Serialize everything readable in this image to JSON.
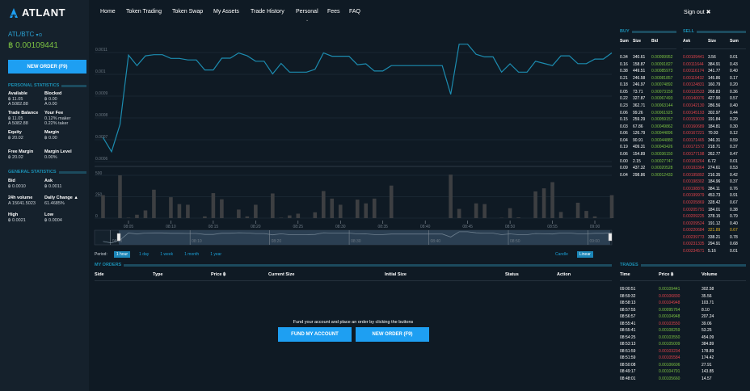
{
  "brand": "ATLANT",
  "colors": {
    "accent": "#1e9ff2",
    "line": "#1c8cb0",
    "buy": "#7cc242",
    "sell": "#e0434b",
    "highlight": "#e6b422"
  },
  "nav": {
    "items": [
      "Home",
      "Token Trading",
      "Token Swap",
      "My Assets",
      "Trade History",
      "Personal",
      "Fees",
      "FAQ"
    ],
    "sign_out": "Sign out"
  },
  "market": {
    "pair": "ATL/BTC",
    "pair_icons": "▾⊙",
    "price": "฿ 0.00109441",
    "new_order": "NEW ORDER (F9)"
  },
  "personal_stats": {
    "title": "PERSONAL STATISTICS",
    "items": [
      {
        "label": "Available",
        "lines": [
          "฿ 11.05",
          "A 5082.88"
        ]
      },
      {
        "label": "Blocked",
        "lines": [
          "฿ 0.00",
          "A 0.00"
        ]
      },
      {
        "label": "Trade Balance",
        "lines": [
          "฿ 11.05",
          "A 5082.88"
        ]
      },
      {
        "label": "Your Fee",
        "lines": [
          "0.12% maker",
          "0.22% taker"
        ]
      },
      {
        "label": "Equity",
        "lines": [
          "฿ 20.02"
        ]
      },
      {
        "label": "Margin",
        "lines": [
          "฿ 0.00"
        ]
      },
      {
        "label": "Free Margin",
        "lines": [
          "฿ 20.02"
        ]
      },
      {
        "label": "Margin Level",
        "lines": [
          "0.00%"
        ]
      }
    ]
  },
  "general_stats": {
    "title": "GENERAL STATISTICS",
    "items": [
      {
        "label": "Bid",
        "lines": [
          "฿ 0.0010"
        ]
      },
      {
        "label": "Ask",
        "lines": [
          "฿ 0.0011"
        ]
      },
      {
        "label": "24h volume",
        "lines": [
          "A 15041.5023"
        ]
      },
      {
        "label": "Daily Change ▲",
        "lines": [
          "61.4685%"
        ]
      },
      {
        "label": "High",
        "lines": [
          "฿ 0.0021"
        ]
      },
      {
        "label": "Low",
        "lines": [
          "฿ 0.0004"
        ]
      }
    ]
  },
  "chart_data": {
    "type": "line",
    "x_start": "08:02",
    "x_step_minutes": 1,
    "price": [
      0.00071,
      0.000645,
      0.00077,
      0.001088,
      0.00104,
      0.001085,
      0.00109,
      0.00109,
      0.001073,
      0.001073,
      0.001066,
      0.001066,
      0.00102,
      0.00102,
      0.001074,
      0.001074,
      0.001098,
      0.001085,
      0.00106,
      0.00106,
      0.001002,
      0.00105,
      0.00101,
      0.00101,
      0.00101,
      0.001023,
      0.001098,
      0.001083,
      0.001083,
      0.001083,
      0.001044,
      0.001048,
      0.001015,
      0.001015,
      0.00104,
      0.00104,
      0.00104,
      0.00104,
      0.00104,
      0.00104,
      0.00104,
      0.000908,
      0.001138,
      0.001138,
      0.001092,
      0.00108,
      0.00108,
      0.00101,
      0.001048,
      0.00101,
      0.00101,
      0.00106,
      0.00105,
      0.00104,
      0.001085,
      0.001085,
      0.001049,
      0.001049,
      0.00107,
      0.00107,
      0.001098
    ],
    "volume": [
      268,
      0,
      500,
      5,
      40,
      90,
      332,
      0,
      244,
      164,
      156,
      0,
      20,
      292,
      220,
      0,
      100,
      20,
      156,
      0,
      288,
      5,
      32,
      52,
      0,
      68,
      316,
      228,
      156,
      0,
      216,
      172,
      228,
      0,
      380,
      0,
      0,
      0,
      0,
      0,
      0,
      508,
      108,
      0,
      172,
      164,
      0,
      4,
      116,
      8,
      0,
      312,
      348,
      420,
      72,
      0,
      180,
      84,
      20,
      0,
      268
    ],
    "price_ticks": [
      "0.0011",
      "0.001",
      "0.0009",
      "0.0008",
      "0.0007",
      "0.0006"
    ],
    "price_range": [
      0.0006,
      0.0011
    ],
    "volume_ticks": [
      "500",
      "250",
      "0"
    ],
    "volume_range": [
      0,
      500
    ],
    "time_ticks": [
      "08:05",
      "08:10",
      "08:15",
      "08:20",
      "08:25",
      "08:30",
      "08:35",
      "08:40",
      "08:45",
      "08:50",
      "08:55",
      "09:00"
    ],
    "x_range": [
      "08:01",
      "09:02"
    ],
    "navigator_ticks": [
      "08:00",
      "08:10",
      "08:20",
      "08:30",
      "08:40",
      "08:50",
      "09:00"
    ],
    "grid": true
  },
  "period": {
    "label": "Period:",
    "options": [
      "1 hour",
      "1 day",
      "1 week",
      "1 month",
      "1 year"
    ],
    "selected": "1 hour",
    "modes": [
      "Candle",
      "Linear"
    ],
    "mode_selected": "Linear"
  },
  "orders": {
    "title": "MY ORDERS",
    "columns": [
      "Side",
      "Type",
      "Price ฿",
      "Current Size",
      "Initial Size",
      "Status",
      "Action"
    ],
    "empty": "Fund your account and place an order by clicking the buttons",
    "fund": "FUND MY ACCOUNT",
    "new_order": "NEW ORDER (F9)"
  },
  "book": {
    "buy_title": "BUY",
    "sell_title": "SELL",
    "buy_cols": [
      "Sum",
      "Size",
      "Bid"
    ],
    "sell_cols": [
      "Ask",
      "Size",
      "Sum"
    ],
    "buy": [
      [
        "0.34",
        "340.61",
        "0.00099952"
      ],
      [
        "0.16",
        "158.87",
        "0.00091827"
      ],
      [
        "0.38",
        "449.51",
        "0.00085973"
      ],
      [
        "0.21",
        "246.58",
        "0.00081857"
      ],
      [
        "0.18",
        "246.97",
        "0.00074892"
      ],
      [
        "0.05",
        "73.71",
        "0.00073159"
      ],
      [
        "0.22",
        "327.87",
        "0.00067493"
      ],
      [
        "0.23",
        "362.71",
        "0.00063144"
      ],
      [
        "0.06",
        "99.26",
        "0.00061925"
      ],
      [
        "0.15",
        "259.29",
        "0.00059157"
      ],
      [
        "0.03",
        "67.86",
        "0.00049862"
      ],
      [
        "0.06",
        "126.79",
        "0.00044896"
      ],
      [
        "0.04",
        "90.91",
        "0.00044880"
      ],
      [
        "0.19",
        "409.31",
        "0.00043426"
      ],
      [
        "0.06",
        "154.89",
        "0.00036150"
      ],
      [
        "0.00",
        "2.15",
        "0.00027747"
      ],
      [
        "0.09",
        "437.32",
        "0.00020528"
      ],
      [
        "0.04",
        "298.86",
        "0.00012433"
      ]
    ],
    "sell": [
      [
        "0.00109441",
        "3.56",
        "0.01"
      ],
      [
        "0.00111644",
        "384.91",
        "0.43"
      ],
      [
        "0.00116174",
        "341.77",
        "0.40"
      ],
      [
        "0.00119432",
        "145.86",
        "0.17"
      ],
      [
        "0.00124831",
        "160.79",
        "0.20"
      ],
      [
        "0.00132533",
        "268.83",
        "0.36"
      ],
      [
        "0.00140076",
        "427.90",
        "0.57"
      ],
      [
        "0.00142130",
        "286.56",
        "0.40"
      ],
      [
        "0.00145193",
        "302.97",
        "0.44"
      ],
      [
        "0.00153039",
        "191.84",
        "0.29"
      ],
      [
        "0.00160689",
        "184.81",
        "0.30"
      ],
      [
        "0.00167221",
        "70.93",
        "0.12"
      ],
      [
        "0.00171465",
        "346.31",
        "0.59"
      ],
      [
        "0.00171572",
        "218.71",
        "0.37"
      ],
      [
        "0.00177198",
        "262.77",
        "0.47"
      ],
      [
        "0.00183264",
        "6.72",
        "0.01"
      ],
      [
        "0.00193364",
        "274.61",
        "0.53"
      ],
      [
        "0.00195892",
        "216.35",
        "0.42"
      ],
      [
        "0.00198302",
        "184.96",
        "0.37"
      ],
      [
        "0.00198876",
        "384.11",
        "0.76"
      ],
      [
        "0.00199979",
        "453.73",
        "0.91"
      ],
      [
        "0.00205869",
        "328.42",
        "0.67"
      ],
      [
        "0.00205791",
        "184.01",
        "0.38"
      ],
      [
        "0.00209225",
        "378.15",
        "0.79"
      ],
      [
        "0.00209524",
        "191.12",
        "0.40"
      ],
      [
        "0.00220684",
        "321.89",
        "0.67"
      ],
      [
        "0.00239773",
        "338.21",
        "0.78"
      ],
      [
        "0.00231335",
        "294.91",
        "0.68"
      ],
      [
        "0.00234571",
        "5.16",
        "0.01"
      ]
    ],
    "highlight_sell_index": 25
  },
  "trades": {
    "title": "TRADES",
    "columns": [
      "Time",
      "Price ฿",
      "Volume"
    ],
    "rows": [
      [
        "09:00:51",
        "0.00109441",
        "302.58",
        "buy"
      ],
      [
        "08:59:32",
        "0.00106830",
        "35.56",
        "sell"
      ],
      [
        "08:58:13",
        "0.00104948",
        "103.71",
        "sell"
      ],
      [
        "08:57:55",
        "0.00095764",
        "8.10",
        "buy"
      ],
      [
        "08:56:57",
        "0.00104948",
        "207.24",
        "buy"
      ],
      [
        "08:55:41",
        "0.00103550",
        "39.06",
        "sell"
      ],
      [
        "08:55:41",
        "0.00108259",
        "53.25",
        "buy"
      ],
      [
        "08:54:25",
        "0.00103550",
        "454.09",
        "buy"
      ],
      [
        "08:53:13",
        "0.00105009",
        "384.89",
        "buy"
      ],
      [
        "08:51:59",
        "0.00103234",
        "178.89",
        "sell"
      ],
      [
        "08:51:59",
        "0.00105584",
        "174.42",
        "sell"
      ],
      [
        "08:50:08",
        "0.00106606",
        "27.91",
        "buy"
      ],
      [
        "08:49:17",
        "0.00104791",
        "143.85",
        "buy"
      ],
      [
        "08:48:01",
        "0.00105660",
        "14.57",
        "buy"
      ]
    ]
  }
}
